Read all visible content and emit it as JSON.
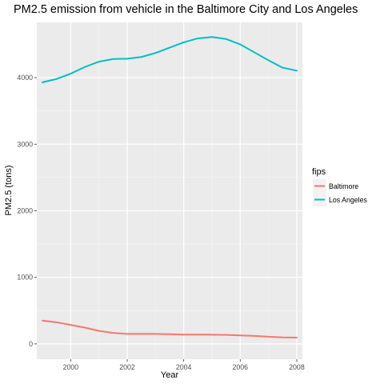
{
  "chart_data": {
    "type": "line",
    "title": "PM2.5 emission from vehicle in the Baltimore City and Los Angeles",
    "xlabel": "Year",
    "ylabel": "PM2.5 (tons)",
    "xlim": [
      1998.8,
      2008.2
    ],
    "ylim": [
      -230,
      4830
    ],
    "x_ticks": [
      2000,
      2002,
      2004,
      2006,
      2008
    ],
    "y_ticks": [
      0,
      1000,
      2000,
      3000,
      4000
    ],
    "grid": true,
    "legend": {
      "title": "fips",
      "position": "right"
    },
    "series": [
      {
        "name": "Baltimore",
        "color": "#F8766D",
        "x": [
          1999,
          1999.5,
          2000,
          2000.5,
          2001,
          2001.5,
          2002,
          2002.5,
          2003,
          2003.5,
          2004,
          2004.5,
          2005,
          2005.5,
          2006,
          2006.5,
          2007,
          2007.5,
          2008
        ],
        "values": [
          350,
          325,
          285,
          245,
          195,
          165,
          150,
          150,
          150,
          145,
          140,
          140,
          138,
          135,
          128,
          120,
          108,
          98,
          95
        ]
      },
      {
        "name": "Los Angeles",
        "color": "#00BFC4",
        "x": [
          1999,
          1999.5,
          2000,
          2000.5,
          2001,
          2001.5,
          2002,
          2002.5,
          2003,
          2003.5,
          2004,
          2004.5,
          2005,
          2005.5,
          2006,
          2006.5,
          2007,
          2007.5,
          2008
        ],
        "values": [
          3930,
          3980,
          4060,
          4160,
          4240,
          4280,
          4285,
          4310,
          4370,
          4450,
          4530,
          4590,
          4610,
          4580,
          4500,
          4380,
          4260,
          4150,
          4105
        ]
      }
    ]
  }
}
